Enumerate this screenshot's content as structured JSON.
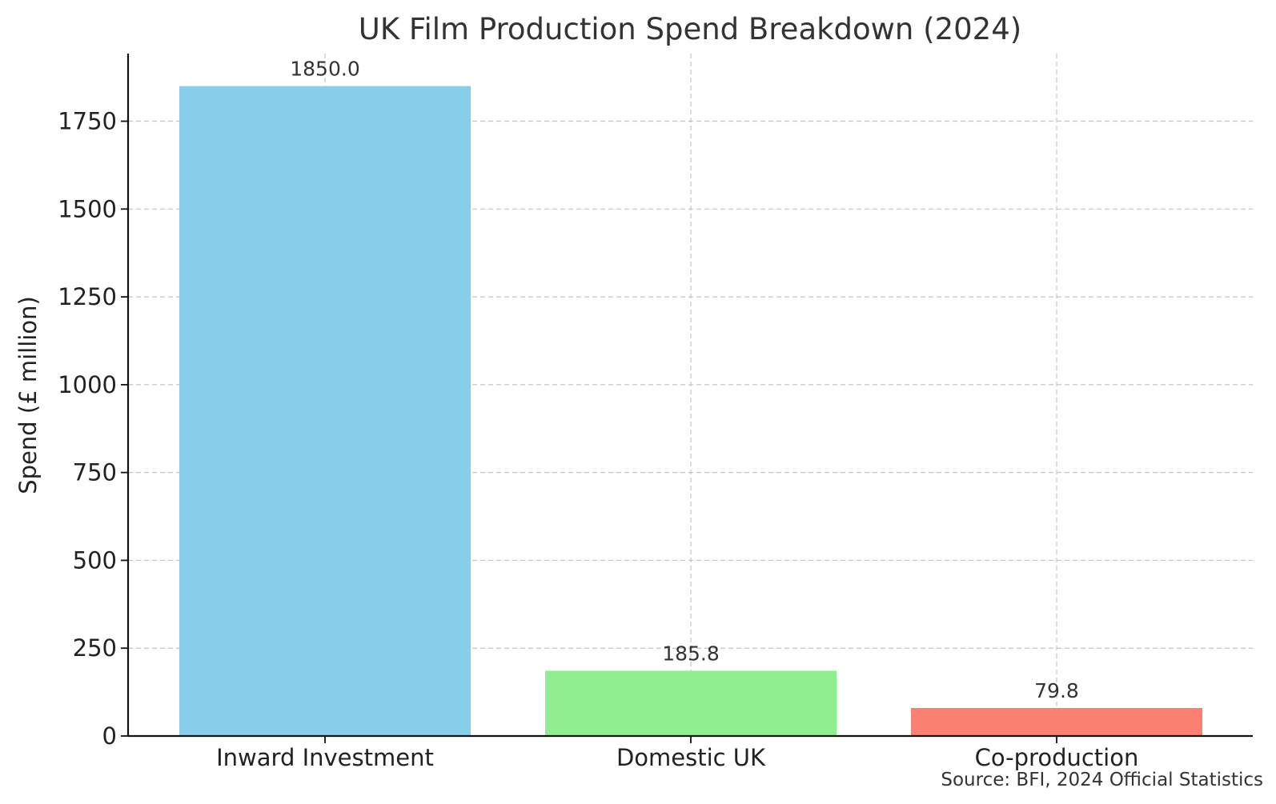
{
  "chart_data": {
    "type": "bar",
    "title": "UK Film Production Spend Breakdown (2024)",
    "xlabel": "",
    "ylabel": "Spend (£ million)",
    "categories": [
      "Inward Investment",
      "Domestic UK",
      "Co-production"
    ],
    "values": [
      1850.0,
      185.8,
      79.8
    ],
    "data_labels": [
      "1850.0",
      "185.8",
      "79.8"
    ],
    "colors": [
      "#87ceeb",
      "#90ee90",
      "#fa8072"
    ],
    "yticks": [
      0,
      250,
      500,
      750,
      1000,
      1250,
      1500,
      1750
    ],
    "ylim": [
      0,
      1942.5
    ],
    "grid": true,
    "source": "Source: BFI, 2024 Official Statistics"
  }
}
